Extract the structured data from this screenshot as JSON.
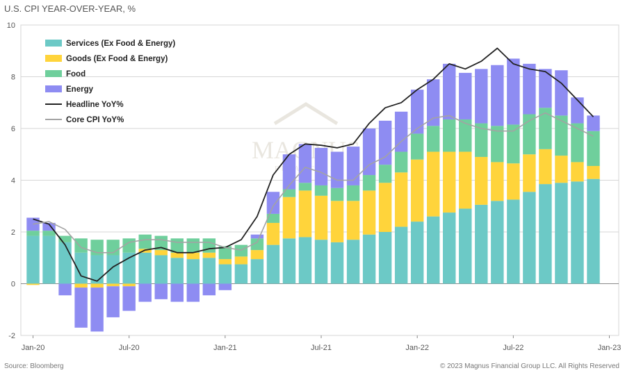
{
  "title": "U.S. CPI YEAR-OVER-YEAR, %",
  "source": "Source: Bloomberg",
  "copyright": "© 2023 Magnus Financial Group LLC. All Rights Reserved",
  "watermark": {
    "name": "MAGNUS",
    "sub": "FINANCIAL"
  },
  "colors": {
    "services": "#6cc9c6",
    "goods": "#ffd43b",
    "food": "#6fcf9c",
    "energy": "#8e8cf2",
    "headline": "#222222",
    "core": "#a3a3a3",
    "grid": "#d6d6d6",
    "axis": "#888888"
  },
  "chart_data": {
    "type": "bar",
    "stacked": true,
    "title": "U.S. CPI YEAR-OVER-YEAR, %",
    "ylim": [
      -2,
      10
    ],
    "yticks": [
      "-2",
      "0",
      "2",
      "4",
      "6",
      "8",
      "10"
    ],
    "grid": true,
    "legend_position": "top-left",
    "x_tick_labels": [
      "Jan-20",
      "Jul-20",
      "Jan-21",
      "Jul-21",
      "Jan-22",
      "Jul-22",
      "Jan-23"
    ],
    "x_tick_index": [
      0,
      6,
      12,
      18,
      24,
      30,
      36
    ],
    "categories": [
      "Jan-20",
      "Feb-20",
      "Mar-20",
      "Apr-20",
      "May-20",
      "Jun-20",
      "Jul-20",
      "Aug-20",
      "Sep-20",
      "Oct-20",
      "Nov-20",
      "Dec-20",
      "Jan-21",
      "Feb-21",
      "Mar-21",
      "Apr-21",
      "May-21",
      "Jun-21",
      "Jul-21",
      "Aug-21",
      "Sep-21",
      "Oct-21",
      "Nov-21",
      "Dec-21",
      "Jan-22",
      "Feb-22",
      "Mar-22",
      "Apr-22",
      "May-22",
      "Jun-22",
      "Jul-22",
      "Aug-22",
      "Sep-22",
      "Oct-22",
      "Nov-22",
      "Dec-22"
    ],
    "series": [
      {
        "name": "Services (Ex Food & Energy)",
        "key": "services",
        "kind": "bar",
        "values": [
          1.85,
          1.85,
          1.6,
          1.2,
          1.1,
          1.1,
          1.2,
          1.2,
          1.1,
          1.0,
          0.95,
          1.0,
          0.75,
          0.75,
          0.95,
          1.5,
          1.75,
          1.8,
          1.7,
          1.6,
          1.7,
          1.9,
          2.0,
          2.2,
          2.4,
          2.6,
          2.75,
          2.9,
          3.05,
          3.2,
          3.25,
          3.55,
          3.85,
          3.9,
          3.95,
          4.05
        ]
      },
      {
        "name": "Goods (Ex Food & Energy)",
        "key": "goods",
        "kind": "bar",
        "values": [
          -0.05,
          0.0,
          0.0,
          -0.15,
          -0.15,
          -0.1,
          -0.1,
          0.15,
          0.2,
          0.2,
          0.25,
          0.2,
          0.2,
          0.3,
          0.35,
          0.85,
          1.6,
          1.8,
          1.7,
          1.6,
          1.5,
          1.7,
          1.9,
          2.1,
          2.4,
          2.5,
          2.35,
          2.2,
          1.85,
          1.5,
          1.4,
          1.45,
          1.35,
          1.05,
          0.75,
          0.5
        ]
      },
      {
        "name": "Food",
        "key": "food",
        "kind": "bar",
        "values": [
          0.2,
          0.2,
          0.25,
          0.55,
          0.6,
          0.6,
          0.55,
          0.55,
          0.55,
          0.55,
          0.55,
          0.55,
          0.5,
          0.45,
          0.45,
          0.35,
          0.3,
          0.3,
          0.4,
          0.5,
          0.6,
          0.6,
          0.7,
          0.8,
          1.0,
          1.0,
          1.25,
          1.25,
          1.3,
          1.4,
          1.5,
          1.55,
          1.6,
          1.55,
          1.5,
          1.35
        ]
      },
      {
        "name": "Energy",
        "key": "energy",
        "kind": "bar",
        "values": [
          0.5,
          0.3,
          -0.45,
          -1.55,
          -1.7,
          -1.2,
          -0.95,
          -0.7,
          -0.6,
          -0.7,
          -0.7,
          -0.45,
          -0.25,
          0.0,
          0.15,
          0.85,
          1.35,
          1.5,
          1.45,
          1.4,
          1.5,
          1.8,
          1.7,
          1.55,
          1.7,
          1.8,
          2.15,
          1.8,
          2.1,
          2.35,
          2.55,
          1.95,
          1.5,
          1.75,
          1.0,
          0.6
        ]
      },
      {
        "name": "Headline YoY%",
        "key": "headline",
        "kind": "line",
        "values": [
          2.5,
          2.3,
          1.5,
          0.3,
          0.1,
          0.65,
          1.0,
          1.3,
          1.4,
          1.2,
          1.2,
          1.35,
          1.4,
          1.7,
          2.6,
          4.2,
          5.0,
          5.4,
          5.35,
          5.25,
          5.4,
          6.2,
          6.8,
          7.0,
          7.5,
          7.9,
          8.5,
          8.3,
          8.6,
          9.1,
          8.5,
          8.3,
          8.2,
          7.75,
          7.1,
          6.45
        ]
      },
      {
        "name": "Core CPI YoY%",
        "key": "core",
        "kind": "line",
        "values": [
          2.3,
          2.4,
          2.1,
          1.4,
          1.2,
          1.2,
          1.6,
          1.7,
          1.7,
          1.6,
          1.6,
          1.6,
          1.4,
          1.3,
          1.6,
          3.0,
          3.8,
          4.5,
          4.3,
          4.0,
          4.0,
          4.6,
          4.9,
          5.5,
          6.0,
          6.4,
          6.5,
          6.2,
          6.0,
          5.9,
          5.9,
          6.3,
          6.6,
          6.3,
          6.0,
          5.7
        ]
      }
    ]
  }
}
